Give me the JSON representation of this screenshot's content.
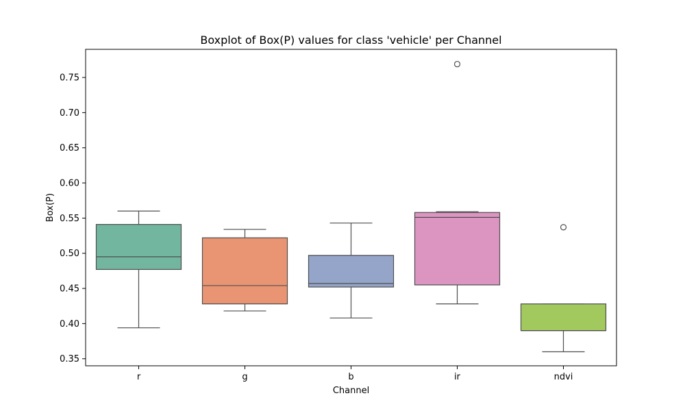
{
  "chart_data": {
    "type": "box",
    "title": "Boxplot of Box(P) values for class 'vehicle' per Channel",
    "xlabel": "Channel",
    "ylabel": "Box(P)",
    "ylim": [
      0.34,
      0.79
    ],
    "yticks": [
      0.35,
      0.4,
      0.45,
      0.5,
      0.55,
      0.6,
      0.65,
      0.7,
      0.75
    ],
    "ytick_labels": [
      "0.35",
      "0.40",
      "0.45",
      "0.50",
      "0.55",
      "0.60",
      "0.65",
      "0.70",
      "0.75"
    ],
    "grid": false,
    "categories": [
      "r",
      "g",
      "b",
      "ir",
      "ndvi"
    ],
    "series": [
      {
        "category": "r",
        "color": "#72b6a0",
        "whisker_low": 0.394,
        "q1": 0.477,
        "median": 0.495,
        "q3": 0.541,
        "whisker_high": 0.56,
        "outliers": []
      },
      {
        "category": "g",
        "color": "#e99574",
        "whisker_low": 0.418,
        "q1": 0.428,
        "median": 0.454,
        "q3": 0.522,
        "whisker_high": 0.534,
        "outliers": []
      },
      {
        "category": "b",
        "color": "#94a5c9",
        "whisker_low": 0.408,
        "q1": 0.452,
        "median": 0.457,
        "q3": 0.497,
        "whisker_high": 0.543,
        "outliers": []
      },
      {
        "category": "ir",
        "color": "#dc94c1",
        "whisker_low": 0.428,
        "q1": 0.455,
        "median": 0.551,
        "q3": 0.558,
        "whisker_high": 0.559,
        "outliers": [
          0.769
        ]
      },
      {
        "category": "ndvi",
        "color": "#a2c95e",
        "whisker_low": 0.36,
        "q1": 0.39,
        "median": 0.39,
        "q3": 0.428,
        "whisker_high": 0.428,
        "outliers": [
          0.537
        ]
      }
    ]
  }
}
